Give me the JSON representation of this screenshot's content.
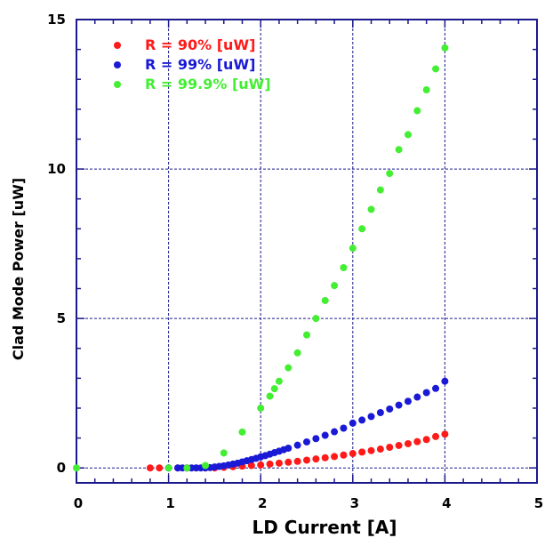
{
  "chart_data": {
    "type": "scatter",
    "title": "",
    "xlabel": "LD Current  [A]",
    "ylabel": "Clad Mode Power  [uW]",
    "xlim": [
      0,
      5
    ],
    "ylim": [
      -0.5,
      15
    ],
    "xticks": [
      0,
      1,
      2,
      3,
      4,
      5
    ],
    "yticks": [
      0,
      5,
      10,
      15
    ],
    "x_tick_labels": [
      "0",
      "1",
      "2",
      "3",
      "4",
      "5"
    ],
    "y_tick_labels": [
      "0",
      "5",
      "10",
      "15"
    ],
    "grid": true,
    "legend_position": "top-left",
    "series": [
      {
        "name": "R = 90%  [uW]",
        "color": "#ff1a1a",
        "points": [
          [
            0.8,
            0.0
          ],
          [
            0.9,
            0.0
          ],
          [
            1.0,
            0.0
          ],
          [
            1.1,
            0.0
          ],
          [
            1.2,
            0.0
          ],
          [
            1.3,
            0.0
          ],
          [
            1.4,
            0.0
          ],
          [
            1.5,
            0.0
          ],
          [
            1.6,
            0.02
          ],
          [
            1.7,
            0.04
          ],
          [
            1.8,
            0.06
          ],
          [
            1.9,
            0.08
          ],
          [
            2.0,
            0.1
          ],
          [
            2.1,
            0.13
          ],
          [
            2.2,
            0.16
          ],
          [
            2.3,
            0.19
          ],
          [
            2.4,
            0.22
          ],
          [
            2.5,
            0.26
          ],
          [
            2.6,
            0.3
          ],
          [
            2.7,
            0.34
          ],
          [
            2.8,
            0.38
          ],
          [
            2.9,
            0.43
          ],
          [
            3.0,
            0.48
          ],
          [
            3.1,
            0.53
          ],
          [
            3.2,
            0.58
          ],
          [
            3.3,
            0.63
          ],
          [
            3.4,
            0.69
          ],
          [
            3.5,
            0.75
          ],
          [
            3.6,
            0.81
          ],
          [
            3.7,
            0.88
          ],
          [
            3.8,
            0.95
          ],
          [
            3.9,
            1.05
          ],
          [
            4.0,
            1.13
          ]
        ]
      },
      {
        "name": "R = 99%  [uW]",
        "color": "#1a1ad6",
        "points": [
          [
            1.0,
            0.0
          ],
          [
            1.1,
            0.0
          ],
          [
            1.15,
            0.0
          ],
          [
            1.2,
            0.0
          ],
          [
            1.25,
            0.0
          ],
          [
            1.3,
            0.0
          ],
          [
            1.35,
            0.0
          ],
          [
            1.4,
            0.0
          ],
          [
            1.45,
            0.01
          ],
          [
            1.5,
            0.03
          ],
          [
            1.55,
            0.05
          ],
          [
            1.6,
            0.07
          ],
          [
            1.65,
            0.1
          ],
          [
            1.7,
            0.13
          ],
          [
            1.75,
            0.16
          ],
          [
            1.8,
            0.2
          ],
          [
            1.85,
            0.24
          ],
          [
            1.9,
            0.28
          ],
          [
            1.95,
            0.32
          ],
          [
            2.0,
            0.37
          ],
          [
            2.05,
            0.41
          ],
          [
            2.1,
            0.46
          ],
          [
            2.15,
            0.51
          ],
          [
            2.2,
            0.56
          ],
          [
            2.25,
            0.61
          ],
          [
            2.3,
            0.66
          ],
          [
            2.4,
            0.76
          ],
          [
            2.5,
            0.87
          ],
          [
            2.6,
            0.98
          ],
          [
            2.7,
            1.09
          ],
          [
            2.8,
            1.21
          ],
          [
            2.9,
            1.33
          ],
          [
            3.0,
            1.5
          ],
          [
            3.1,
            1.6
          ],
          [
            3.2,
            1.72
          ],
          [
            3.3,
            1.85
          ],
          [
            3.4,
            1.97
          ],
          [
            3.5,
            2.1
          ],
          [
            3.6,
            2.23
          ],
          [
            3.7,
            2.37
          ],
          [
            3.8,
            2.52
          ],
          [
            3.9,
            2.66
          ],
          [
            4.0,
            2.9
          ]
        ]
      },
      {
        "name": "R = 99.9%  [uW]",
        "color": "#44ee33",
        "points": [
          [
            0.0,
            0.0
          ],
          [
            1.0,
            0.0
          ],
          [
            1.2,
            0.0
          ],
          [
            1.4,
            0.08
          ],
          [
            1.6,
            0.5
          ],
          [
            1.8,
            1.2
          ],
          [
            2.0,
            2.0
          ],
          [
            2.1,
            2.4
          ],
          [
            2.15,
            2.65
          ],
          [
            2.2,
            2.9
          ],
          [
            2.3,
            3.35
          ],
          [
            2.4,
            3.85
          ],
          [
            2.5,
            4.45
          ],
          [
            2.6,
            5.0
          ],
          [
            2.7,
            5.6
          ],
          [
            2.8,
            6.1
          ],
          [
            2.9,
            6.7
          ],
          [
            3.0,
            7.35
          ],
          [
            3.1,
            8.0
          ],
          [
            3.2,
            8.65
          ],
          [
            3.3,
            9.3
          ],
          [
            3.4,
            9.85
          ],
          [
            3.5,
            10.65
          ],
          [
            3.6,
            11.15
          ],
          [
            3.7,
            11.95
          ],
          [
            3.8,
            12.65
          ],
          [
            3.9,
            13.35
          ],
          [
            4.0,
            14.05
          ]
        ]
      }
    ]
  }
}
